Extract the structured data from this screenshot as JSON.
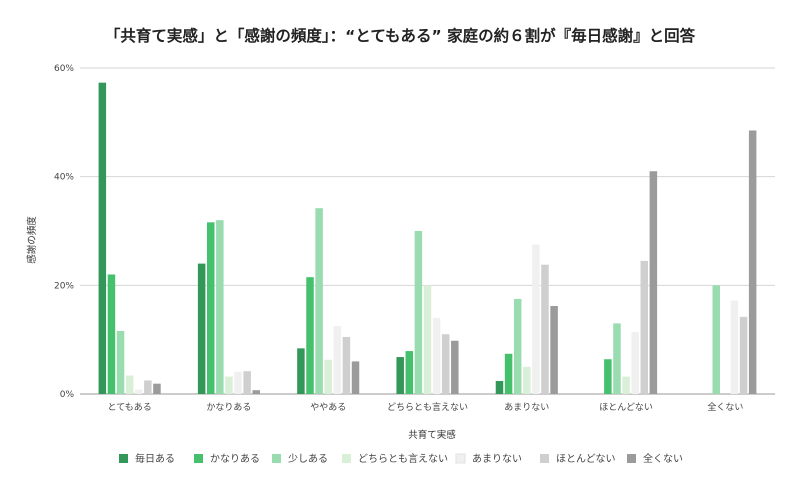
{
  "chart_data": {
    "type": "bar",
    "title": "「共育て実感」と「感謝の頻度」：“とてもある” 家庭の約６割が『毎日感謝』と回答",
    "xlabel": "共育て実感",
    "ylabel": "感謝の頻度",
    "ylim": [
      0,
      60
    ],
    "yticks": [
      0,
      20,
      40,
      60
    ],
    "ytick_labels": [
      "0%",
      "20%",
      "40%",
      "60%"
    ],
    "grid": true,
    "legend_position": "bottom",
    "categories": [
      "とてもある",
      "かなりある",
      "ややある",
      "どちらとも言えない",
      "あまりない",
      "ほとんどない",
      "全くない"
    ],
    "series": [
      {
        "name": "毎日ある",
        "color": "#34975a",
        "values": [
          57.3,
          24.0,
          8.4,
          6.8,
          2.4,
          0,
          0
        ]
      },
      {
        "name": "かなりある",
        "color": "#45c06c",
        "values": [
          22.0,
          31.6,
          21.5,
          7.9,
          7.4,
          6.4,
          0
        ]
      },
      {
        "name": "少しある",
        "color": "#98dcb0",
        "values": [
          11.6,
          32.0,
          34.2,
          30.0,
          17.5,
          13.0,
          20.0
        ]
      },
      {
        "name": "どちらとも言えない",
        "color": "#d9efd8",
        "values": [
          3.4,
          3.2,
          6.3,
          20.0,
          5.0,
          3.2,
          0
        ]
      },
      {
        "name": "あまりない",
        "color": "#f0f0f0",
        "values": [
          0.8,
          4.1,
          12.5,
          14.0,
          27.5,
          11.4,
          17.2
        ]
      },
      {
        "name": "ほとんどない",
        "color": "#cfcfcf",
        "values": [
          2.5,
          4.2,
          10.5,
          11.0,
          23.8,
          24.5,
          14.2
        ]
      },
      {
        "name": "全くない",
        "color": "#9b9b9b",
        "values": [
          1.9,
          0.7,
          6.0,
          9.8,
          16.2,
          41.0,
          48.5
        ]
      }
    ]
  }
}
